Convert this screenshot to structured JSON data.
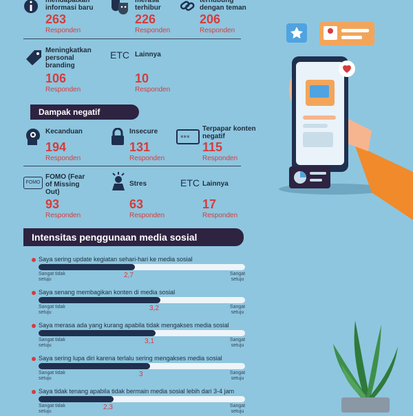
{
  "top_row": [
    {
      "label": "mendapatkan informasi baru",
      "number": "263",
      "unit": "Responden",
      "icon": "info-icon"
    },
    {
      "label": "merasa terhibur",
      "number": "226",
      "unit": "Responden",
      "icon": "theater-masks-icon"
    },
    {
      "label": "terhubung dengan teman",
      "number": "206",
      "unit": "Responden",
      "icon": "link-icon"
    }
  ],
  "row2": [
    {
      "label": "Meningkatkan personal branding",
      "number": "106",
      "unit": "Responden",
      "icon": "tag-icon"
    },
    {
      "label": "Lainnya",
      "number": "10",
      "unit": "Responden",
      "icon_text": "ETC"
    }
  ],
  "negative": {
    "title": "Dampak negatif",
    "items": [
      {
        "label": "Kecanduan",
        "number": "194",
        "unit": "Responden",
        "icon": "head-gear-icon"
      },
      {
        "label": "Insecure",
        "number": "131",
        "unit": "Responden",
        "icon": "lock-icon"
      },
      {
        "label": "Terpapar konten negatif",
        "number": "115",
        "unit": "Responden",
        "icon": "password-screen-icon"
      },
      {
        "label": "FOMO (Fear of Missing Out)",
        "number": "93",
        "unit": "Responden",
        "icon_text": "FOMO"
      },
      {
        "label": "Stres",
        "number": "63",
        "unit": "Responden",
        "icon": "stress-person-icon"
      },
      {
        "label": "Lainnya",
        "number": "17",
        "unit": "Responden",
        "icon_text": "ETC"
      }
    ]
  },
  "intensity": {
    "title": "Intensitas penggunaan media sosial",
    "scale_min": 1,
    "scale_max": 5,
    "low_label": "Sangat tidak setuju",
    "high_label": "Sangat setuju",
    "statements": [
      {
        "text": "Saya sering update kegiatan sehari-hari ke media sosial",
        "score": "2,7",
        "value": 2.7
      },
      {
        "text": "Saya senang membagikan konten di media sosial",
        "score": "3,2",
        "value": 3.2
      },
      {
        "text": "Saya merasa ada yang kurang apabila tidak mengakses media sosial",
        "score": "3,1",
        "value": 3.1
      },
      {
        "text": "Saya sering lupa diri karena terlalu sering mengakses media sosial",
        "score": "3",
        "value": 3.0
      },
      {
        "text": "Saya tidak tenang apabila tidak bermain media sosial lebih dari 3-4 jam",
        "score": "2,3",
        "value": 2.3
      }
    ]
  },
  "colors": {
    "background": "#8ec6df",
    "navy": "#1f2f4e",
    "red": "#d63c3c",
    "banner": "#2e2341"
  }
}
